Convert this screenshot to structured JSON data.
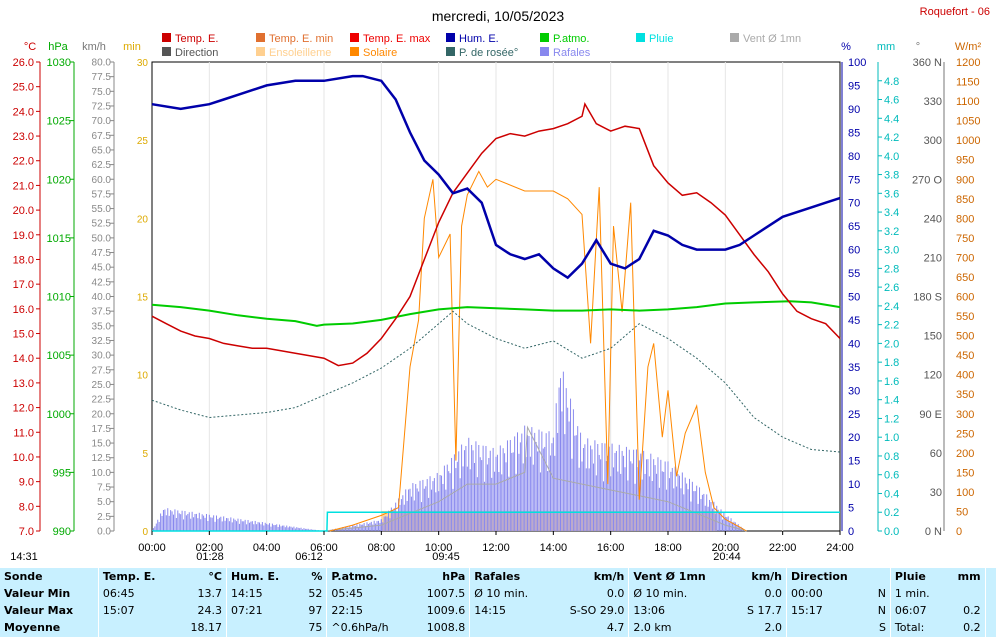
{
  "header": {
    "title": "mercredi, 10/05/2023",
    "station": "Roquefort - 06"
  },
  "legend": [
    {
      "label": "Temp. E.",
      "color": "#cc0000"
    },
    {
      "label": "Temp. E. min",
      "color": "#e07030"
    },
    {
      "label": "Temp. E. max",
      "color": "#ee0000"
    },
    {
      "label": "Hum. E.",
      "color": "#0000aa"
    },
    {
      "label": "P.atmo.",
      "color": "#00cc00"
    },
    {
      "label": "Pluie",
      "color": "#00e0e0"
    },
    {
      "label": "Vent Ø 1mn",
      "color": "#aaaaaa"
    },
    {
      "label": "Direction",
      "color": "#555555"
    },
    {
      "label": "Ensoleilleme",
      "color": "#ffd090"
    },
    {
      "label": "Solaire",
      "color": "#ff8800"
    },
    {
      "label": "P. de rosée°",
      "color": "#336666"
    },
    {
      "label": "Rafales",
      "color": "#8888ee"
    }
  ],
  "axes": {
    "units": [
      "°C",
      "hPa",
      "km/h",
      "min",
      "%",
      "mm",
      "°",
      "W/m²"
    ],
    "temp_ticks": [
      "26.0",
      "25.0",
      "24.0",
      "23.0",
      "22.0",
      "21.0",
      "20.0",
      "19.0",
      "18.0",
      "17.0",
      "16.0",
      "15.0",
      "14.0",
      "13.0",
      "12.0",
      "11.0",
      "10.0",
      "9.0",
      "8.0",
      "7.0"
    ],
    "press_ticks": [
      "1030",
      "1025",
      "1020",
      "1015",
      "1010",
      "1005",
      "1000",
      "995",
      "990"
    ],
    "wind_ticks": [
      "80.0",
      "77.5",
      "75.0",
      "72.5",
      "70.0",
      "67.5",
      "65.0",
      "62.5",
      "60.0",
      "57.5",
      "55.0",
      "52.5",
      "50.0",
      "47.5",
      "45.0",
      "42.5",
      "40.0",
      "37.5",
      "35.0",
      "32.5",
      "30.0",
      "27.5",
      "25.0",
      "22.5",
      "20.0",
      "17.5",
      "15.0",
      "12.5",
      "10.0",
      "7.5",
      "5.0",
      "2.5",
      "0.0"
    ],
    "min_ticks": [
      "30",
      "25",
      "20",
      "15",
      "10",
      "5",
      "0"
    ],
    "hum_ticks": [
      "100",
      "95",
      "90",
      "85",
      "80",
      "75",
      "70",
      "65",
      "60",
      "55",
      "50",
      "45",
      "40",
      "35",
      "30",
      "25",
      "20",
      "15",
      "10",
      "5",
      "0"
    ],
    "rain_ticks": [
      "4.8",
      "4.6",
      "4.4",
      "4.2",
      "4.0",
      "3.8",
      "3.6",
      "3.4",
      "3.2",
      "3.0",
      "2.8",
      "2.6",
      "2.4",
      "2.2",
      "2.0",
      "1.8",
      "1.6",
      "1.4",
      "1.2",
      "1.0",
      "0.8",
      "0.6",
      "0.4",
      "0.2",
      "0.0"
    ],
    "dir_ticks": [
      "360 N",
      "330",
      "300",
      "270 O",
      "240",
      "210",
      "180 S",
      "150",
      "120",
      "90 E",
      "60",
      "30",
      "0 N"
    ],
    "solar_ticks": [
      "1200",
      "1150",
      "1100",
      "1050",
      "1000",
      "950",
      "900",
      "850",
      "800",
      "750",
      "700",
      "650",
      "600",
      "550",
      "500",
      "450",
      "400",
      "350",
      "300",
      "250",
      "200",
      "150",
      "100",
      "50",
      "0"
    ],
    "time_ticks": [
      "00:00",
      "02:00",
      "04:00",
      "06:00",
      "08:00",
      "10:00",
      "12:00",
      "14:00",
      "16:00",
      "18:00",
      "20:00",
      "22:00",
      "24:00"
    ],
    "markers": [
      "14:31",
      "01:28",
      "06:12",
      "09:45",
      "20:44"
    ]
  },
  "chart_data": {
    "type": "line",
    "x_unit": "hour",
    "series": [
      {
        "name": "Temp. E.",
        "unit": "°C",
        "points": [
          [
            0,
            15.7
          ],
          [
            0.5,
            15.4
          ],
          [
            1,
            15.1
          ],
          [
            1.5,
            14.9
          ],
          [
            2,
            14.8
          ],
          [
            2.5,
            14.6
          ],
          [
            3,
            14.5
          ],
          [
            3.5,
            14.4
          ],
          [
            4,
            14.4
          ],
          [
            4.5,
            14.3
          ],
          [
            5,
            14.2
          ],
          [
            5.5,
            14.1
          ],
          [
            6,
            14.0
          ],
          [
            6.5,
            13.7
          ],
          [
            7,
            13.8
          ],
          [
            7.5,
            14.2
          ],
          [
            8,
            14.8
          ],
          [
            8.5,
            15.6
          ],
          [
            9,
            16.5
          ],
          [
            9.5,
            18.0
          ],
          [
            10,
            19.5
          ],
          [
            10.5,
            20.7
          ],
          [
            11,
            21.5
          ],
          [
            11.5,
            22.3
          ],
          [
            12,
            22.9
          ],
          [
            12.5,
            23.1
          ],
          [
            13,
            23.0
          ],
          [
            13.5,
            23.2
          ],
          [
            14,
            23.3
          ],
          [
            14.5,
            23.5
          ],
          [
            15,
            23.8
          ],
          [
            15.1,
            24.3
          ],
          [
            15.5,
            23.5
          ],
          [
            16,
            23.2
          ],
          [
            16.5,
            23.4
          ],
          [
            17,
            23.3
          ],
          [
            17.5,
            21.8
          ],
          [
            18,
            21.1
          ],
          [
            18.5,
            20.6
          ],
          [
            19,
            20.7
          ],
          [
            19.5,
            20.3
          ],
          [
            20,
            19.8
          ],
          [
            20.5,
            19.0
          ],
          [
            21,
            18.2
          ],
          [
            21.5,
            17.5
          ],
          [
            22,
            16.6
          ],
          [
            22.5,
            15.9
          ],
          [
            23,
            15.6
          ],
          [
            23.5,
            15.4
          ],
          [
            24,
            14.8
          ]
        ]
      },
      {
        "name": "Hum. E.",
        "unit": "%",
        "points": [
          [
            0,
            91
          ],
          [
            1,
            90
          ],
          [
            2,
            91
          ],
          [
            2.5,
            92
          ],
          [
            3,
            93
          ],
          [
            4,
            95
          ],
          [
            5,
            96
          ],
          [
            6,
            96
          ],
          [
            7,
            97
          ],
          [
            7.35,
            97
          ],
          [
            8,
            96
          ],
          [
            8.5,
            92
          ],
          [
            9,
            85
          ],
          [
            9.5,
            79
          ],
          [
            10,
            76
          ],
          [
            10.5,
            72
          ],
          [
            11,
            73
          ],
          [
            11.5,
            70
          ],
          [
            12,
            61
          ],
          [
            12.5,
            59
          ],
          [
            13,
            58
          ],
          [
            13.5,
            59
          ],
          [
            14,
            56
          ],
          [
            14.5,
            54
          ],
          [
            15,
            57
          ],
          [
            15.5,
            62
          ],
          [
            16,
            57
          ],
          [
            16.5,
            56
          ],
          [
            17,
            58
          ],
          [
            17.5,
            64
          ],
          [
            18,
            63
          ],
          [
            18.5,
            61
          ],
          [
            19,
            60
          ],
          [
            19.5,
            60
          ],
          [
            20,
            60
          ],
          [
            20.5,
            61
          ],
          [
            21,
            63
          ],
          [
            22,
            67
          ],
          [
            23,
            69
          ],
          [
            23.5,
            70
          ],
          [
            24,
            71
          ]
        ]
      },
      {
        "name": "P.atmo.",
        "unit": "hPa",
        "points": [
          [
            0,
            1009.3
          ],
          [
            1,
            1009.1
          ],
          [
            2,
            1008.8
          ],
          [
            3,
            1008.4
          ],
          [
            4,
            1008.1
          ],
          [
            5,
            1007.9
          ],
          [
            5.75,
            1007.5
          ],
          [
            6,
            1007.6
          ],
          [
            7,
            1007.7
          ],
          [
            8,
            1008.0
          ],
          [
            9,
            1008.5
          ],
          [
            10,
            1008.9
          ],
          [
            11,
            1009.1
          ],
          [
            12,
            1009.0
          ],
          [
            13,
            1008.9
          ],
          [
            14,
            1008.8
          ],
          [
            15,
            1008.8
          ],
          [
            16,
            1008.9
          ],
          [
            17,
            1008.8
          ],
          [
            18,
            1008.9
          ],
          [
            19,
            1009.1
          ],
          [
            20,
            1009.4
          ],
          [
            21,
            1009.5
          ],
          [
            22.25,
            1009.6
          ],
          [
            23,
            1009.5
          ],
          [
            24,
            1009.1
          ]
        ]
      },
      {
        "name": "P. de rosée°",
        "unit": "°C",
        "points": [
          [
            0,
            12.3
          ],
          [
            1,
            11.9
          ],
          [
            2,
            11.6
          ],
          [
            3,
            11.7
          ],
          [
            4,
            11.8
          ],
          [
            5,
            12.0
          ],
          [
            6,
            12.5
          ],
          [
            7,
            13.0
          ],
          [
            8,
            13.6
          ],
          [
            9,
            14.4
          ],
          [
            10,
            15.4
          ],
          [
            10.5,
            15.9
          ],
          [
            11,
            15.4
          ],
          [
            11.5,
            15.1
          ],
          [
            12,
            14.8
          ],
          [
            13,
            14.4
          ],
          [
            14,
            14.7
          ],
          [
            15,
            14.0
          ],
          [
            16,
            14.4
          ],
          [
            17,
            15.4
          ],
          [
            18,
            14.8
          ],
          [
            19,
            14.0
          ],
          [
            20,
            13.0
          ],
          [
            21,
            11.6
          ],
          [
            22,
            10.8
          ],
          [
            23,
            10.3
          ],
          [
            24,
            10.2
          ]
        ]
      },
      {
        "name": "Solaire",
        "unit": "W/m²",
        "points": [
          [
            6.2,
            0
          ],
          [
            7,
            15
          ],
          [
            8,
            40
          ],
          [
            8.6,
            60
          ],
          [
            9,
            420
          ],
          [
            9.3,
            540
          ],
          [
            9.5,
            800
          ],
          [
            9.8,
            900
          ],
          [
            10,
            700
          ],
          [
            10.4,
            760
          ],
          [
            10.6,
            180
          ],
          [
            10.8,
            780
          ],
          [
            11,
            860
          ],
          [
            11.4,
            920
          ],
          [
            11.7,
            880
          ],
          [
            12,
            900
          ],
          [
            13,
            870
          ],
          [
            14,
            870
          ],
          [
            14.5,
            850
          ],
          [
            15,
            810
          ],
          [
            15.3,
            480
          ],
          [
            15.6,
            880
          ],
          [
            15.9,
            120
          ],
          [
            16.1,
            780
          ],
          [
            16.4,
            560
          ],
          [
            16.7,
            840
          ],
          [
            17,
            80
          ],
          [
            17.3,
            420
          ],
          [
            17.5,
            480
          ],
          [
            17.8,
            240
          ],
          [
            18,
            360
          ],
          [
            18.3,
            140
          ],
          [
            18.6,
            250
          ],
          [
            19,
            320
          ],
          [
            19.3,
            150
          ],
          [
            19.6,
            60
          ],
          [
            20,
            30
          ],
          [
            20.5,
            10
          ],
          [
            20.74,
            0
          ]
        ]
      },
      {
        "name": "Rafales",
        "unit": "km/h",
        "points": [
          [
            0,
            0
          ],
          [
            0.4,
            4
          ],
          [
            6,
            0
          ],
          [
            8,
            2
          ],
          [
            9,
            8
          ],
          [
            10,
            10
          ],
          [
            11,
            16
          ],
          [
            12,
            14
          ],
          [
            13,
            18
          ],
          [
            14,
            17
          ],
          [
            14.25,
            29
          ],
          [
            15,
            16
          ],
          [
            16,
            15
          ],
          [
            17,
            14
          ],
          [
            18,
            12
          ],
          [
            19,
            8
          ],
          [
            20,
            3
          ],
          [
            20.74,
            0
          ]
        ]
      },
      {
        "name": "Vent Ø 1mn",
        "unit": "km/h",
        "points": [
          [
            6,
            0
          ],
          [
            8,
            1
          ],
          [
            9,
            3
          ],
          [
            10,
            5
          ],
          [
            11,
            8
          ],
          [
            12,
            8
          ],
          [
            13,
            10
          ],
          [
            13.1,
            17.7
          ],
          [
            14,
            9
          ],
          [
            15,
            8
          ],
          [
            16,
            7
          ],
          [
            17,
            6
          ],
          [
            18,
            5
          ],
          [
            19,
            3
          ],
          [
            20,
            1
          ],
          [
            20.74,
            0
          ]
        ]
      },
      {
        "name": "Pluie",
        "unit": "mm",
        "points": [
          [
            0,
            0
          ],
          [
            6.1,
            0
          ],
          [
            6.12,
            0.2
          ],
          [
            24,
            0.2
          ]
        ]
      }
    ]
  },
  "stats": {
    "headers": [
      {
        "label": "Sonde",
        "unit": ""
      },
      {
        "label": "Temp. E.",
        "unit": "°C"
      },
      {
        "label": "Hum. E.",
        "unit": "%"
      },
      {
        "label": "P.atmo.",
        "unit": "hPa"
      },
      {
        "label": "Rafales",
        "unit": "km/h"
      },
      {
        "label": "Vent Ø 1mn",
        "unit": "km/h"
      },
      {
        "label": "Direction",
        "unit": ""
      },
      {
        "label": "Pluie",
        "unit": "mm"
      }
    ],
    "rows": [
      {
        "label": "Valeur Min",
        "cells": [
          [
            "06:45",
            "13.7"
          ],
          [
            "14:15",
            "52"
          ],
          [
            "05:45",
            "1007.5"
          ],
          [
            "Ø 10 min.",
            "0.0"
          ],
          [
            "Ø 10 min.",
            "0.0"
          ],
          [
            "00:00",
            "N"
          ],
          [
            "1 min.",
            ""
          ]
        ]
      },
      {
        "label": "Valeur Max",
        "cells": [
          [
            "15:07",
            "24.3"
          ],
          [
            "07:21",
            "97"
          ],
          [
            "22:15",
            "1009.6"
          ],
          [
            "14:15",
            "S-SO 29.0"
          ],
          [
            "13:06",
            "S 17.7"
          ],
          [
            "15:17",
            "N"
          ],
          [
            "06:07",
            "0.2"
          ]
        ]
      },
      {
        "label": "Moyenne",
        "cells": [
          [
            "",
            "18.17"
          ],
          [
            "",
            "75"
          ],
          [
            "^0.6hPa/h",
            "1008.8"
          ],
          [
            "",
            "4.7"
          ],
          [
            "2.0 km",
            "2.0"
          ],
          [
            "",
            "S"
          ],
          [
            "Total:",
            "0.2"
          ]
        ]
      }
    ]
  }
}
